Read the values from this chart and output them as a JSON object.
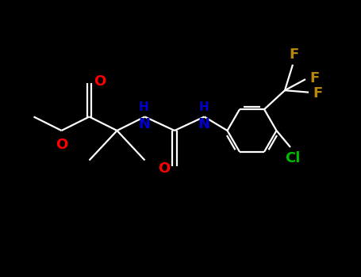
{
  "background_color": "#000000",
  "bond_color": "#ffffff",
  "atom_colors": {
    "O": "#ff0000",
    "N": "#0000cd",
    "F": "#b8860b",
    "Cl": "#00bb00",
    "C": "#ffffff",
    "H": "#ffffff"
  },
  "figsize": [
    4.55,
    3.5
  ],
  "dpi": 100,
  "lw": 1.6,
  "fsize": 13
}
